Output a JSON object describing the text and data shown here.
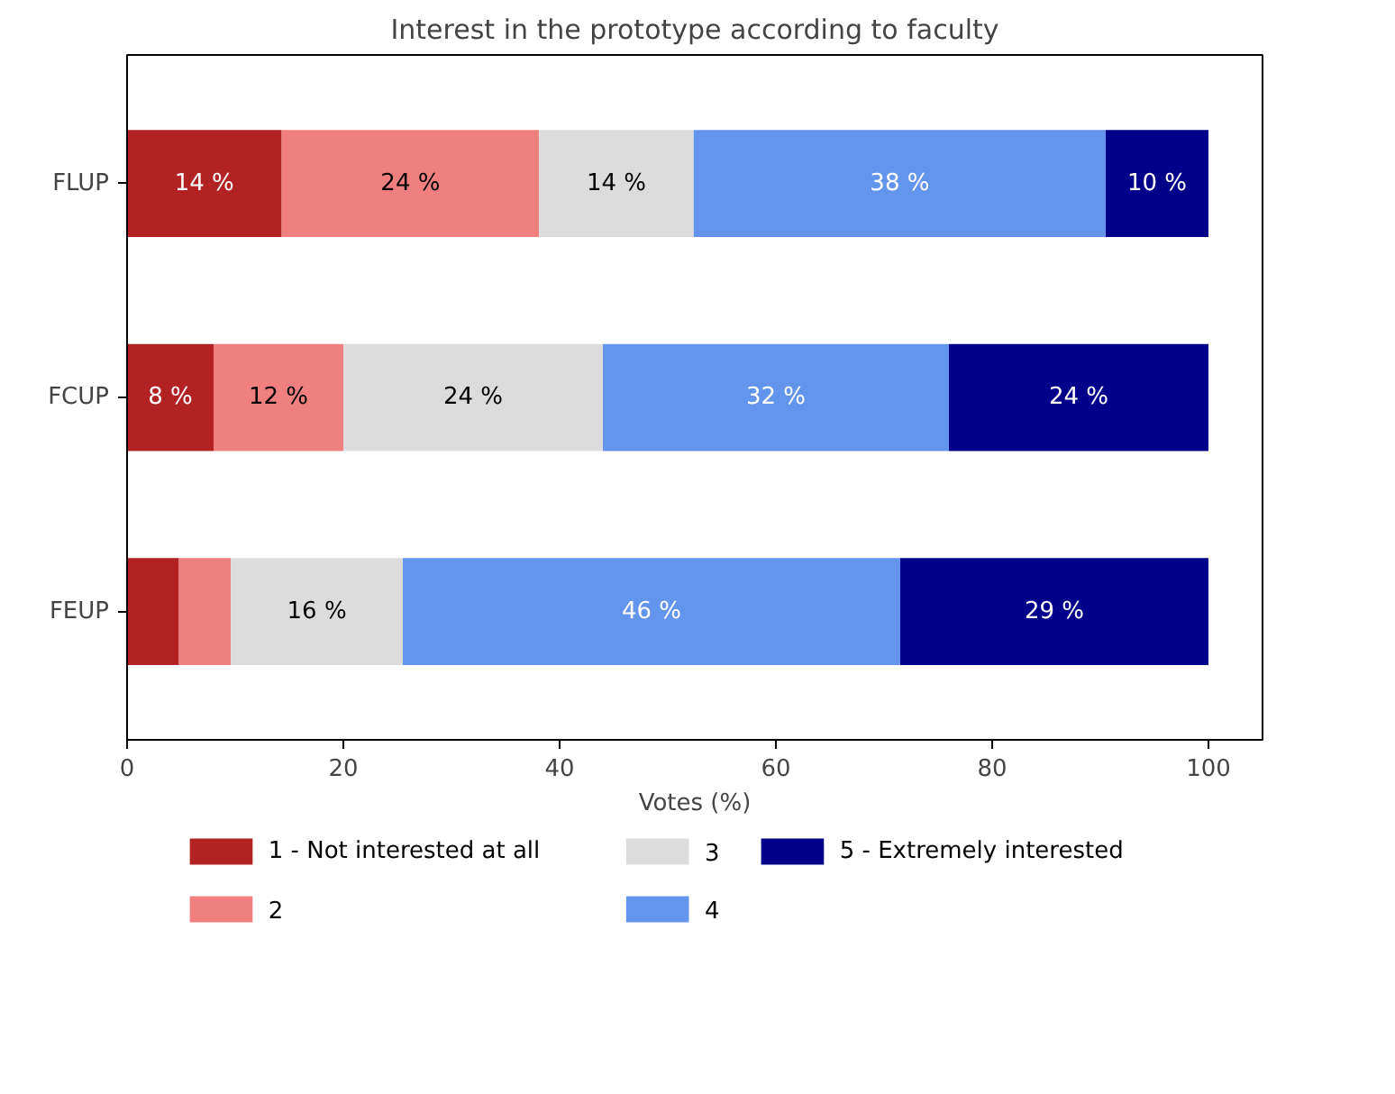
{
  "chart_data": {
    "type": "bar",
    "orientation": "horizontal",
    "stacked": true,
    "title": "Interest in the prototype according to faculty",
    "xlabel": "Votes (%)",
    "categories": [
      "FLUP",
      "FCUP",
      "FEUP"
    ],
    "series": [
      {
        "name": "1 - Not interested at all",
        "color": "#b22222",
        "values": [
          14.3,
          8,
          4.8
        ],
        "value_labels": [
          "14 %",
          "8 %",
          null
        ]
      },
      {
        "name": "2",
        "color": "#f08080",
        "values": [
          23.8,
          12,
          4.8
        ],
        "value_labels": [
          "24 %",
          "12 %",
          null
        ]
      },
      {
        "name": "3",
        "color": "#dcdcdc",
        "values": [
          14.3,
          24,
          15.9
        ],
        "value_labels": [
          "14 %",
          "24 %",
          "16 %"
        ]
      },
      {
        "name": "4",
        "color": "#6495ed",
        "values": [
          38.1,
          32,
          46.0
        ],
        "value_labels": [
          "38 %",
          "32 %",
          "46 %"
        ]
      },
      {
        "name": "5 - Extremely interested",
        "color": "#00008b",
        "values": [
          9.5,
          24,
          28.5
        ],
        "value_labels": [
          "10 %",
          "24 %",
          "29 %"
        ]
      }
    ],
    "xlim": [
      0,
      105
    ],
    "xticks": [
      0,
      20,
      40,
      60,
      80,
      100
    ],
    "grid": false,
    "legend": "bottom"
  }
}
